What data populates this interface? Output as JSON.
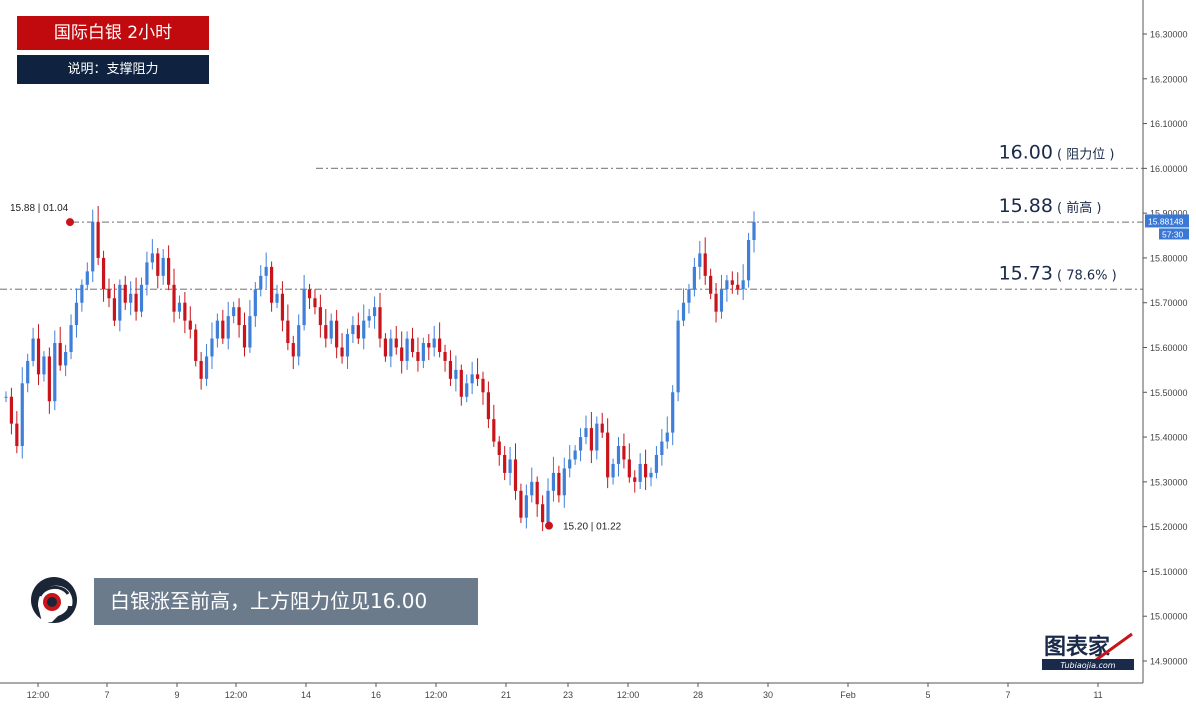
{
  "header": {
    "title": "国际白银 2小时",
    "subtitle": "说明：支撑阻力"
  },
  "caption": "白银涨至前高，上方阻力位见16.00",
  "logo": {
    "name": "图表家",
    "domain": "Tubiaojia.com"
  },
  "colors": {
    "up": "#3f7fd9",
    "down": "#c9141b",
    "title_bg": "#c00a0e",
    "sub_bg": "#0f2340",
    "caption_bg": "#6b7b8c",
    "line": "#8c8c8c",
    "marker": "#c9141b",
    "price_tag": "#3a78d6"
  },
  "chart_data": {
    "type": "candlestick",
    "title": "国际白银 2小时",
    "ylim": [
      14.85,
      16.35
    ],
    "y_ticks": [
      "16.30000",
      "16.20000",
      "16.10000",
      "16.00000",
      "15.90000",
      "15.80000",
      "15.70000",
      "15.60000",
      "15.50000",
      "15.40000",
      "15.30000",
      "15.20000",
      "15.10000",
      "15.00000",
      "14.90000"
    ],
    "x_ticks": [
      "12:00",
      "7",
      "9",
      "12:00",
      "14",
      "16",
      "12:00",
      "21",
      "23",
      "12:00",
      "28",
      "30",
      "Feb",
      "5",
      "7",
      "11"
    ],
    "levels": [
      {
        "value": 16.0,
        "label": "16.00",
        "note": "( 阻力位 )"
      },
      {
        "value": 15.88,
        "label": "15.88",
        "note": "( 前高 )"
      },
      {
        "value": 15.73,
        "label": "15.73",
        "note": "( 78.6% )"
      }
    ],
    "markers": [
      {
        "price": 15.88,
        "label": "15.88 | 01.04"
      },
      {
        "price": 15.2,
        "label": "15.20 | 01.22"
      }
    ],
    "current_price": {
      "value": "15.88148",
      "countdown": "57:30"
    },
    "series": [
      {
        "closes": [
          15.49,
          15.43,
          15.38,
          15.52,
          15.57,
          15.62,
          15.54,
          15.58,
          15.48,
          15.61,
          15.56,
          15.59,
          15.65,
          15.7,
          15.74,
          15.77,
          15.88,
          15.8,
          15.73,
          15.71,
          15.66,
          15.74,
          15.7,
          15.72,
          15.68,
          15.74,
          15.79,
          15.81,
          15.76,
          15.8,
          15.74,
          15.68,
          15.7,
          15.66,
          15.64,
          15.57,
          15.53,
          15.58,
          15.62,
          15.66,
          15.62,
          15.67,
          15.69,
          15.65,
          15.6,
          15.67,
          15.73,
          15.76,
          15.78,
          15.7,
          15.72,
          15.66,
          15.61,
          15.58,
          15.65,
          15.73,
          15.71,
          15.69,
          15.65,
          15.62,
          15.66,
          15.6,
          15.58,
          15.63,
          15.65,
          15.62,
          15.66,
          15.67,
          15.69,
          15.62,
          15.58,
          15.62,
          15.6,
          15.57,
          15.62,
          15.59,
          15.57,
          15.61,
          15.6,
          15.62,
          15.59,
          15.57,
          15.53,
          15.55,
          15.49,
          15.52,
          15.54,
          15.53,
          15.5,
          15.44,
          15.39,
          15.36,
          15.32,
          15.35,
          15.28,
          15.22,
          15.27,
          15.3,
          15.25,
          15.21,
          15.28,
          15.32,
          15.27,
          15.33,
          15.35,
          15.37,
          15.4,
          15.42,
          15.37,
          15.43,
          15.41,
          15.31,
          15.34,
          15.38,
          15.35,
          15.31,
          15.3,
          15.34,
          15.31,
          15.32,
          15.36,
          15.39,
          15.41,
          15.5,
          15.66,
          15.7,
          15.73,
          15.78,
          15.81,
          15.76,
          15.72,
          15.68,
          15.73,
          15.75,
          15.74,
          15.73,
          15.75,
          15.84,
          15.88
        ]
      }
    ]
  }
}
